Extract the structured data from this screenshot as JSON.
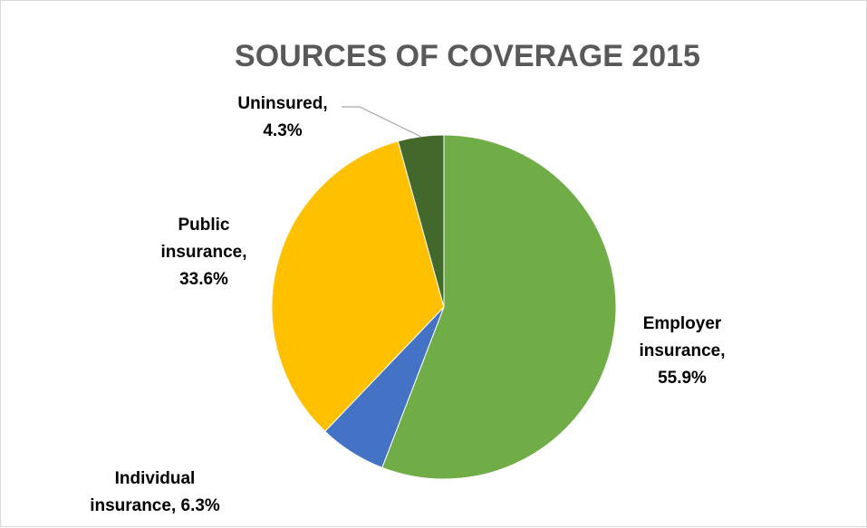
{
  "chart_data": {
    "type": "pie",
    "title": "SOURCES OF COVERAGE 2015",
    "start_angle_deg": 0,
    "direction": "clockwise",
    "slices": [
      {
        "name": "Employer insurance",
        "value": 55.9,
        "color": "#70ad47",
        "label_lines": [
          "Employer",
          "insurance,",
          "55.9%"
        ]
      },
      {
        "name": "Individual insurance",
        "value": 6.3,
        "color": "#4472c4",
        "label_lines": [
          "Individual",
          "insurance, 6.3%"
        ]
      },
      {
        "name": "Public insurance",
        "value": 33.6,
        "color": "#ffc000",
        "label_lines": [
          "Public",
          "insurance,",
          "33.6%"
        ]
      },
      {
        "name": "Uninsured",
        "value": 4.3,
        "color": "#43682b",
        "label_lines": [
          "Uninsured,",
          "4.3%"
        ]
      }
    ],
    "legend": "none"
  }
}
